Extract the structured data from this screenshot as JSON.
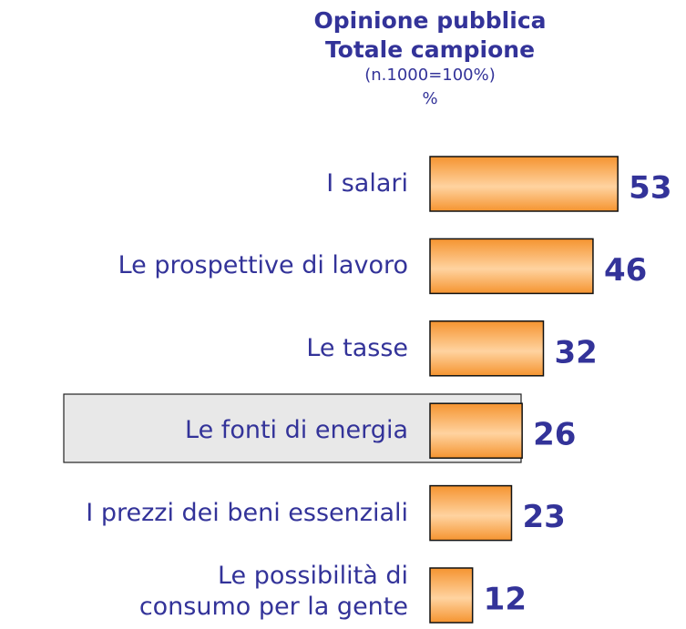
{
  "chart_data": {
    "type": "bar",
    "orientation": "horizontal",
    "title": [
      "Opinione pubblica",
      "Totale campione"
    ],
    "subtitle": [
      "(n.1000=100%)",
      "%"
    ],
    "categories": [
      "I salari",
      "Le prospettive di lavoro",
      "Le tasse",
      "Le fonti di energia",
      "I prezzi dei beni essenziali",
      "Le possibilità di\nconsumo per la gente"
    ],
    "values": [
      53,
      46,
      32,
      26,
      23,
      12
    ],
    "color": "#f7a23e"
  }
}
